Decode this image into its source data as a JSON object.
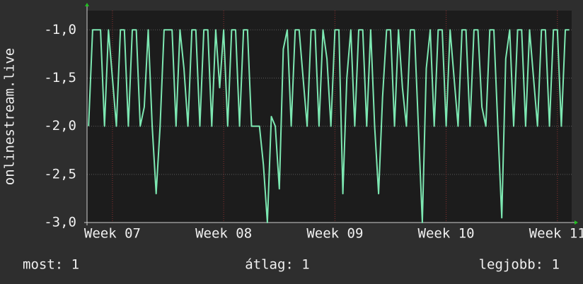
{
  "chart_data": {
    "type": "line",
    "ylabel": "onlinestream.live",
    "color": "#7de8b2",
    "xlim": [
      -1.6,
      28.9
    ],
    "ylim": [
      -3,
      -0.8
    ],
    "xticks": [
      {
        "value": 0,
        "label": "Week 07"
      },
      {
        "value": 7,
        "label": "Week 08"
      },
      {
        "value": 14,
        "label": "Week 09"
      },
      {
        "value": 21,
        "label": "Week 10"
      },
      {
        "value": 28,
        "label": "Week 11"
      }
    ],
    "yticks": [
      {
        "value": -3,
        "label": "-3,0"
      },
      {
        "value": -2.5,
        "label": "-2,5"
      },
      {
        "value": -2,
        "label": "-2,0"
      },
      {
        "value": -1.5,
        "label": "-1,5"
      },
      {
        "value": -1,
        "label": "-1,0"
      }
    ],
    "grid": true,
    "x": [
      -1.5,
      -1.25,
      -1,
      -0.75,
      -0.5,
      -0.25,
      0,
      0.25,
      0.5,
      0.75,
      1,
      1.25,
      1.5,
      1.75,
      2,
      2.25,
      2.5,
      2.75,
      3,
      3.25,
      3.5,
      3.75,
      4,
      4.25,
      4.5,
      4.75,
      5,
      5.25,
      5.5,
      5.75,
      6,
      6.25,
      6.5,
      6.75,
      7,
      7.25,
      7.5,
      7.75,
      8,
      8.25,
      8.5,
      8.75,
      9,
      9.25,
      9.5,
      9.75,
      10,
      10.25,
      10.5,
      10.75,
      11,
      11.25,
      11.5,
      11.75,
      12,
      12.25,
      12.5,
      12.75,
      13,
      13.25,
      13.5,
      13.75,
      14,
      14.25,
      14.5,
      14.75,
      15,
      15.25,
      15.5,
      15.75,
      16,
      16.25,
      16.5,
      16.75,
      17,
      17.25,
      17.5,
      17.75,
      18,
      18.25,
      18.5,
      18.75,
      19,
      19.25,
      19.5,
      19.75,
      20,
      20.25,
      20.5,
      20.75,
      21,
      21.25,
      21.5,
      21.75,
      22,
      22.25,
      22.5,
      22.75,
      23,
      23.25,
      23.5,
      23.75,
      24,
      24.25,
      24.5,
      24.75,
      25,
      25.25,
      25.5,
      25.75,
      26,
      26.25,
      26.5,
      26.75,
      27,
      27.25,
      27.5,
      27.75,
      28,
      28.25,
      28.5,
      28.75
    ],
    "values": [
      -2,
      -1,
      -1,
      -1,
      -2,
      -1,
      -1.5,
      -2,
      -1,
      -1,
      -2,
      -1,
      -1,
      -2,
      -1.8,
      -1,
      -2,
      -2.7,
      -2,
      -1,
      -1,
      -1,
      -2,
      -1,
      -1.4,
      -2,
      -1,
      -1,
      -2,
      -1,
      -1,
      -2,
      -1,
      -1.6,
      -1,
      -2,
      -1,
      -1,
      -2,
      -1,
      -1,
      -2,
      -2,
      -2,
      -2.4,
      -3,
      -1.9,
      -2,
      -2.65,
      -1.2,
      -1,
      -2,
      -1,
      -1,
      -1.5,
      -2,
      -1,
      -1,
      -2,
      -1,
      -1.3,
      -2,
      -1,
      -1,
      -2.7,
      -1.5,
      -1,
      -2,
      -1,
      -1,
      -2,
      -1,
      -2,
      -2.7,
      -1.7,
      -1,
      -1,
      -2,
      -1,
      -1.6,
      -2,
      -1,
      -1,
      -2,
      -3,
      -1.4,
      -1,
      -2,
      -1,
      -1,
      -2,
      -1,
      -1.5,
      -2,
      -1,
      -1,
      -2,
      -1,
      -1,
      -1.8,
      -2,
      -1,
      -1,
      -2,
      -2.95,
      -1.3,
      -1,
      -2,
      -1,
      -1,
      -2,
      -1,
      -1.5,
      -2,
      -1,
      -1,
      -2,
      -1,
      -1,
      -2,
      -1,
      -1
    ],
    "legend_items": [
      "most: 1",
      "átlag: 1",
      "legjobb: 1"
    ]
  }
}
